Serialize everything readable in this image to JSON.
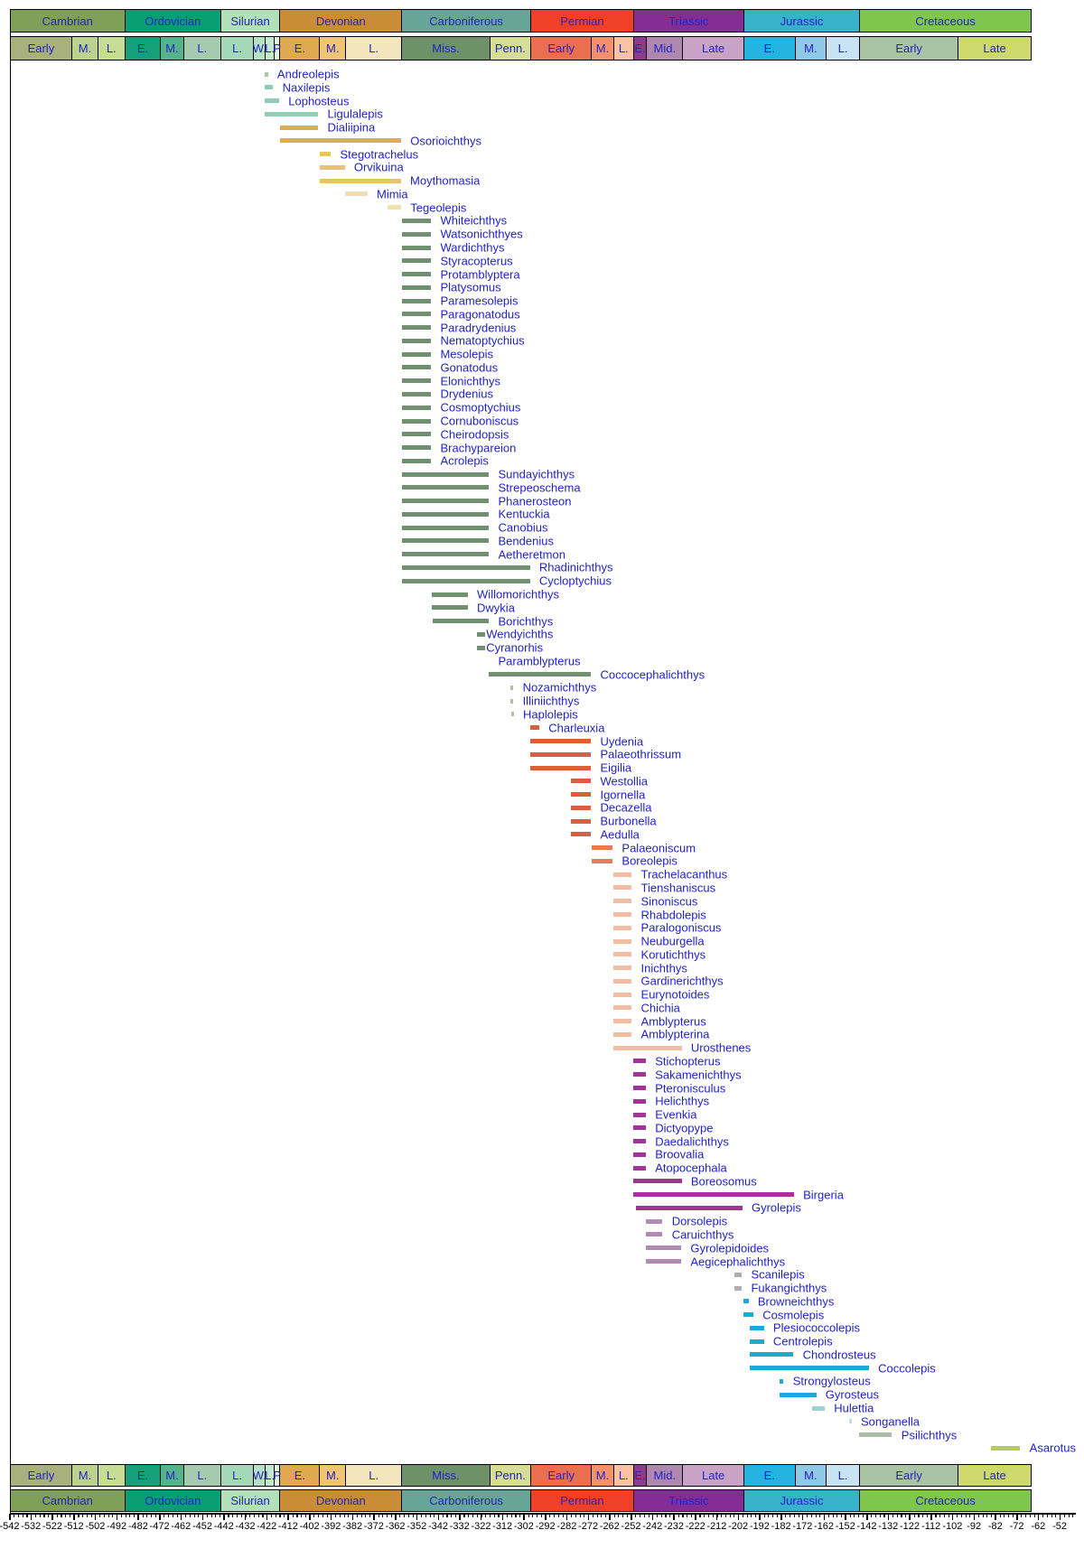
{
  "chart_data": {
    "type": "bar",
    "subtype": "stratigraphic-range-chart",
    "title": "",
    "xlabel": "",
    "ylabel": "",
    "x_axis": {
      "unit": "Ma",
      "min": -542,
      "max": -52,
      "major_tick_step": 10,
      "minor_tick_step": 2,
      "tick_labels": [
        "-542",
        "-532",
        "-522",
        "-512",
        "-502",
        "-492",
        "-482",
        "-472",
        "-462",
        "-452",
        "-442",
        "-432",
        "-422",
        "-412",
        "-402",
        "-392",
        "-382",
        "-372",
        "-362",
        "-352",
        "-342",
        "-332",
        "-322",
        "-312",
        "-302",
        "-292",
        "-282",
        "-272",
        "-262",
        "-252",
        "-242",
        "-232",
        "-222",
        "-212",
        "-202",
        "-192",
        "-182",
        "-172",
        "-162",
        "-152",
        "-142",
        "-132",
        "-122",
        "-112",
        "-102",
        "-92",
        "-82",
        "-72",
        "-62",
        "-52"
      ]
    },
    "periods": [
      {
        "name": "Cambrian",
        "start": 542,
        "end": 488.3,
        "color": "#7FA056"
      },
      {
        "name": "Ordovician",
        "start": 488.3,
        "end": 443.7,
        "color": "#089E74"
      },
      {
        "name": "Silurian",
        "start": 443.7,
        "end": 416,
        "color": "#B2E0B8"
      },
      {
        "name": "Devonian",
        "start": 416,
        "end": 359.2,
        "color": "#CB8C37"
      },
      {
        "name": "Carboniferous",
        "start": 359.2,
        "end": 299,
        "color": "#67A599"
      },
      {
        "name": "Permian",
        "start": 299,
        "end": 251,
        "color": "#F04028"
      },
      {
        "name": "Triassic",
        "start": 251,
        "end": 199.6,
        "color": "#842D94"
      },
      {
        "name": "Jurassic",
        "start": 199.6,
        "end": 145.5,
        "color": "#36B2C9"
      },
      {
        "name": "Cretaceous",
        "start": 145.5,
        "end": 65.5,
        "color": "#7FC64E"
      }
    ],
    "epochs": [
      {
        "label": "Early",
        "start": 542,
        "end": 513,
        "color": "#A8B17E"
      },
      {
        "label": "M.",
        "start": 513,
        "end": 501,
        "color": "#BBD28F"
      },
      {
        "label": "L.",
        "start": 501,
        "end": 488.3,
        "color": "#C6DD95"
      },
      {
        "label": "E.",
        "start": 488.3,
        "end": 471.8,
        "color": "#16A07A"
      },
      {
        "label": "M.",
        "start": 471.8,
        "end": 460.9,
        "color": "#55B28A"
      },
      {
        "label": "L.",
        "start": 460.9,
        "end": 443.7,
        "color": "#A4CBAD"
      },
      {
        "label": "L.",
        "start": 443.7,
        "end": 428.2,
        "color": "#A5D8B8"
      },
      {
        "label": "W.",
        "start": 428.2,
        "end": 422.9,
        "color": "#B5E1C5"
      },
      {
        "label": "L.",
        "start": 422.9,
        "end": 418.7,
        "color": "#C3E7D1"
      },
      {
        "label": "P",
        "start": 418.7,
        "end": 416,
        "color": "#E2F3E0"
      },
      {
        "label": "E.",
        "start": 416,
        "end": 397.5,
        "color": "#DFA952"
      },
      {
        "label": "M.",
        "start": 397.5,
        "end": 385.3,
        "color": "#EFC475"
      },
      {
        "label": "L.",
        "start": 385.3,
        "end": 359.2,
        "color": "#F3E6BC"
      },
      {
        "label": "Miss.",
        "start": 359.2,
        "end": 318.1,
        "color": "#6E9168"
      },
      {
        "label": "Penn.",
        "start": 318.1,
        "end": 299,
        "color": "#D6DD94"
      },
      {
        "label": "Early",
        "start": 299,
        "end": 270.6,
        "color": "#EA6E50"
      },
      {
        "label": "M.",
        "start": 270.6,
        "end": 260.4,
        "color": "#F4916D"
      },
      {
        "label": "L.",
        "start": 260.4,
        "end": 251,
        "color": "#FBC2A3"
      },
      {
        "label": "E.",
        "start": 251,
        "end": 245,
        "color": "#8C3C8E"
      },
      {
        "label": "Mid.",
        "start": 245,
        "end": 228,
        "color": "#B087AE"
      },
      {
        "label": "Late",
        "start": 228,
        "end": 199.6,
        "color": "#C9A2C8"
      },
      {
        "label": "E.",
        "start": 199.6,
        "end": 175.6,
        "color": "#25B3DF"
      },
      {
        "label": "M.",
        "start": 175.6,
        "end": 161.2,
        "color": "#8EC9E7"
      },
      {
        "label": "L.",
        "start": 161.2,
        "end": 145.5,
        "color": "#C8E4F4"
      },
      {
        "label": "Early",
        "start": 145.5,
        "end": 99.6,
        "color": "#A9C4A4"
      },
      {
        "label": "Late",
        "start": 99.6,
        "end": 65.5,
        "color": "#CDD96C"
      }
    ],
    "bar_colors": {
      "gorstian": "#ABC4AE",
      "ludlow": "#90CDB2",
      "edev": "#E0AC53",
      "mdev": "#E9C26C",
      "frasnian": "#F2DCB3",
      "famennian": "#F0E2A8",
      "miss": "#6F9170",
      "moscovian": "#B9BBA6",
      "eperm": "#DB5F3C",
      "mperm": "#E87A58",
      "lperm": "#F1BCA3",
      "etri": "#A13399",
      "mtri": "#B28AB4",
      "rhaetian": "#B2A9B4",
      "ejur": "#1BA9D8",
      "bathonian": "#A0CFD5",
      "tithonian": "#CBDBE3",
      "ecret": "#A9BDA8",
      "campanian": "#B6CA5F"
    },
    "taxa": [
      {
        "name": "Andreolepis",
        "start": 423.0,
        "end": 421.4,
        "color": "gorstian"
      },
      {
        "name": "Naxilepis",
        "start": 422.9,
        "end": 419.0,
        "color": "ludlow"
      },
      {
        "name": "Lophosteus",
        "start": 422.9,
        "end": 416.2,
        "color": "ludlow"
      },
      {
        "name": "Ligulalepis",
        "start": 422.9,
        "end": 398.0,
        "color": "ludlow"
      },
      {
        "name": "Dialiipina",
        "start": 415.9,
        "end": 398.0,
        "color": "edev"
      },
      {
        "name": "Osorioichthys",
        "start": 415.9,
        "end": 359.3,
        "color": "edev"
      },
      {
        "name": "Stegotrachelus",
        "start": 397.4,
        "end": 392.1,
        "color": "mdev"
      },
      {
        "name": "Orvikuina",
        "start": 397.4,
        "end": 385.6,
        "color": "mdev"
      },
      {
        "name": "Moythomasia",
        "start": 397.4,
        "end": 359.4,
        "color": "mdev"
      },
      {
        "name": "Mimia",
        "start": 385.3,
        "end": 375.0,
        "color": "frasnian"
      },
      {
        "name": "Tegeolepis",
        "start": 365.7,
        "end": 359.3,
        "color": "famennian"
      },
      {
        "name": "Whiteichthys",
        "start": 359.0,
        "end": 345.3,
        "color": "miss"
      },
      {
        "name": "Watsonichthyes",
        "start": 359.0,
        "end": 345.3,
        "color": "miss"
      },
      {
        "name": "Wardichthys",
        "start": 359.0,
        "end": 345.3,
        "color": "miss"
      },
      {
        "name": "Styracopterus",
        "start": 359.0,
        "end": 345.3,
        "color": "miss"
      },
      {
        "name": "Protamblyptera",
        "start": 359.0,
        "end": 345.3,
        "color": "miss"
      },
      {
        "name": "Platysomus",
        "start": 359.0,
        "end": 345.3,
        "color": "miss"
      },
      {
        "name": "Paramesolepis",
        "start": 359.0,
        "end": 345.3,
        "color": "miss"
      },
      {
        "name": "Paragonatodus",
        "start": 359.0,
        "end": 345.3,
        "color": "miss"
      },
      {
        "name": "Paradrydenius",
        "start": 359.0,
        "end": 345.3,
        "color": "miss"
      },
      {
        "name": "Nematoptychius",
        "start": 359.0,
        "end": 345.3,
        "color": "miss"
      },
      {
        "name": "Mesolepis",
        "start": 359.0,
        "end": 345.3,
        "color": "miss"
      },
      {
        "name": "Gonatodus",
        "start": 359.0,
        "end": 345.3,
        "color": "miss"
      },
      {
        "name": "Elonichthys",
        "start": 359.0,
        "end": 345.3,
        "color": "miss"
      },
      {
        "name": "Drydenius",
        "start": 359.0,
        "end": 345.3,
        "color": "miss"
      },
      {
        "name": "Cosmoptychius",
        "start": 359.0,
        "end": 345.3,
        "color": "miss"
      },
      {
        "name": "Cornuboniscus",
        "start": 359.0,
        "end": 345.3,
        "color": "miss"
      },
      {
        "name": "Cheirodopsis",
        "start": 359.0,
        "end": 345.3,
        "color": "miss"
      },
      {
        "name": "Brachypareion",
        "start": 359.0,
        "end": 345.3,
        "color": "miss"
      },
      {
        "name": "Acrolepis",
        "start": 359.0,
        "end": 345.3,
        "color": "miss"
      },
      {
        "name": "Sundayichthys",
        "start": 359.0,
        "end": 318.3,
        "color": "miss"
      },
      {
        "name": "Strepeoschema",
        "start": 359.0,
        "end": 318.3,
        "color": "miss"
      },
      {
        "name": "Phanerosteon",
        "start": 359.0,
        "end": 318.3,
        "color": "miss"
      },
      {
        "name": "Kentuckia",
        "start": 359.0,
        "end": 318.3,
        "color": "miss"
      },
      {
        "name": "Canobius",
        "start": 359.0,
        "end": 318.3,
        "color": "miss"
      },
      {
        "name": "Bendenius",
        "start": 359.0,
        "end": 318.3,
        "color": "miss"
      },
      {
        "name": "Aetheretmon",
        "start": 359.0,
        "end": 318.3,
        "color": "miss"
      },
      {
        "name": "Rhadinichthys",
        "start": 359.0,
        "end": 299.2,
        "color": "miss"
      },
      {
        "name": "Cycloptychius",
        "start": 359.0,
        "end": 299.2,
        "color": "miss"
      },
      {
        "name": "Willomorichthys",
        "start": 345.1,
        "end": 328.2,
        "color": "miss"
      },
      {
        "name": "Dwykia",
        "start": 345.1,
        "end": 328.2,
        "color": "miss"
      },
      {
        "name": "Borichthys",
        "start": 344.5,
        "end": 318.3,
        "color": "miss"
      },
      {
        "name": "Wendyichths",
        "start": 323.7,
        "end": 319.9,
        "color": "miss",
        "label_gap": 0.8
      },
      {
        "name": "Cyranorhis",
        "start": 323.7,
        "end": 319.9,
        "color": "miss",
        "label_gap": 0.8
      },
      {
        "name": "Paramblypterus",
        "start": 318.3,
        "end": 318.3,
        "color": "miss",
        "no_bar": true
      },
      {
        "name": "Coccocephalichthys",
        "start": 318.2,
        "end": 270.7,
        "color": "miss"
      },
      {
        "name": "Nozamichthys",
        "start": 308.1,
        "end": 306.9,
        "color": "moscovian"
      },
      {
        "name": "Illiniichthys",
        "start": 308.1,
        "end": 306.9,
        "color": "moscovian"
      },
      {
        "name": "Haplolepis",
        "start": 307.9,
        "end": 306.7,
        "color": "moscovian"
      },
      {
        "name": "Charleuxia",
        "start": 299.0,
        "end": 294.8,
        "color": "eperm"
      },
      {
        "name": "Uydenia",
        "start": 299.0,
        "end": 270.7,
        "color": "eperm"
      },
      {
        "name": "Palaeothrissum",
        "start": 299.0,
        "end": 270.7,
        "color": "eperm"
      },
      {
        "name": "Eigilia",
        "start": 299.0,
        "end": 270.7,
        "color": "eperm"
      },
      {
        "name": "Westollia",
        "start": 280.0,
        "end": 270.7,
        "color": "eperm"
      },
      {
        "name": "Igornella",
        "start": 280.0,
        "end": 270.7,
        "color": "eperm"
      },
      {
        "name": "Decazella",
        "start": 280.0,
        "end": 270.7,
        "color": "eperm"
      },
      {
        "name": "Burbonella",
        "start": 280.0,
        "end": 270.7,
        "color": "eperm"
      },
      {
        "name": "Aedulla",
        "start": 280.0,
        "end": 270.7,
        "color": "eperm"
      },
      {
        "name": "Palaeoniscum",
        "start": 270.5,
        "end": 260.6,
        "color": "mperm"
      },
      {
        "name": "Boreolepis",
        "start": 270.5,
        "end": 260.6,
        "color": "mperm"
      },
      {
        "name": "Trachelacanthus",
        "start": 260.1,
        "end": 251.7,
        "color": "lperm"
      },
      {
        "name": "Tienshaniscus",
        "start": 260.1,
        "end": 251.7,
        "color": "lperm"
      },
      {
        "name": "Sinoniscus",
        "start": 260.1,
        "end": 251.7,
        "color": "lperm"
      },
      {
        "name": "Rhabdolepis",
        "start": 260.1,
        "end": 251.7,
        "color": "lperm"
      },
      {
        "name": "Paralogoniscus",
        "start": 260.1,
        "end": 251.7,
        "color": "lperm"
      },
      {
        "name": "Neuburgella",
        "start": 260.1,
        "end": 251.7,
        "color": "lperm"
      },
      {
        "name": "Korutichthys",
        "start": 260.1,
        "end": 251.7,
        "color": "lperm"
      },
      {
        "name": "Inichthys",
        "start": 260.1,
        "end": 251.7,
        "color": "lperm"
      },
      {
        "name": "Gardinerichthys",
        "start": 260.1,
        "end": 251.7,
        "color": "lperm"
      },
      {
        "name": "Eurynotoides",
        "start": 260.1,
        "end": 251.7,
        "color": "lperm"
      },
      {
        "name": "Chichia",
        "start": 260.1,
        "end": 251.7,
        "color": "lperm"
      },
      {
        "name": "Amblypterus",
        "start": 260.1,
        "end": 251.7,
        "color": "lperm"
      },
      {
        "name": "Amblypterina",
        "start": 260.1,
        "end": 251.7,
        "color": "lperm"
      },
      {
        "name": "Urosthenes",
        "start": 260.1,
        "end": 228.4,
        "color": "lperm"
      },
      {
        "name": "Stichopterus",
        "start": 250.8,
        "end": 245.1,
        "color": "etri"
      },
      {
        "name": "Sakamenichthys",
        "start": 250.8,
        "end": 245.1,
        "color": "etri"
      },
      {
        "name": "Pteronisculus",
        "start": 250.8,
        "end": 245.1,
        "color": "etri"
      },
      {
        "name": "Helichthys",
        "start": 250.8,
        "end": 245.1,
        "color": "etri"
      },
      {
        "name": "Evenkia",
        "start": 250.8,
        "end": 245.1,
        "color": "etri"
      },
      {
        "name": "Dictyopype",
        "start": 250.8,
        "end": 245.1,
        "color": "etri"
      },
      {
        "name": "Daedalichthys",
        "start": 250.8,
        "end": 245.1,
        "color": "etri"
      },
      {
        "name": "Broovalia",
        "start": 250.8,
        "end": 245.1,
        "color": "etri"
      },
      {
        "name": "Atopocephala",
        "start": 250.8,
        "end": 245.1,
        "color": "etri"
      },
      {
        "name": "Boreosomus",
        "start": 250.8,
        "end": 228.4,
        "color": "etri"
      },
      {
        "name": "Birgeria",
        "start": 250.8,
        "end": 176.0,
        "color": "etri"
      },
      {
        "name": "Gyrolepis",
        "start": 249.7,
        "end": 200.1,
        "color": "etri"
      },
      {
        "name": "Dorsolepis",
        "start": 244.9,
        "end": 237.3,
        "color": "mtri"
      },
      {
        "name": "Caruichthys",
        "start": 244.9,
        "end": 237.3,
        "color": "mtri"
      },
      {
        "name": "Gyrolepidoides",
        "start": 244.9,
        "end": 228.6,
        "color": "mtri"
      },
      {
        "name": "Aegicephalichthys",
        "start": 244.9,
        "end": 228.6,
        "color": "mtri"
      },
      {
        "name": "Scanilepis",
        "start": 203.6,
        "end": 200.3,
        "color": "rhaetian"
      },
      {
        "name": "Fukangichthys",
        "start": 203.6,
        "end": 200.3,
        "color": "rhaetian"
      },
      {
        "name": "Browneichthys",
        "start": 199.6,
        "end": 197.2,
        "color": "ejur"
      },
      {
        "name": "Cosmolepis",
        "start": 199.6,
        "end": 194.9,
        "color": "ejur"
      },
      {
        "name": "Plesiococcolepis",
        "start": 196.5,
        "end": 190.0,
        "color": "ejur"
      },
      {
        "name": "Centrolepis",
        "start": 196.5,
        "end": 190.0,
        "color": "ejur"
      },
      {
        "name": "Chondrosteus",
        "start": 196.5,
        "end": 176.2,
        "color": "ejur"
      },
      {
        "name": "Coccolepis",
        "start": 196.5,
        "end": 141.0,
        "color": "ejur"
      },
      {
        "name": "Strongylosteus",
        "start": 182.6,
        "end": 180.8,
        "color": "ejur"
      },
      {
        "name": "Gyrosteus",
        "start": 182.6,
        "end": 165.6,
        "color": "ejur"
      },
      {
        "name": "Hulettia",
        "start": 167.5,
        "end": 161.6,
        "color": "bathonian"
      },
      {
        "name": "Songanella",
        "start": 150.4,
        "end": 149.1,
        "color": "tithonian"
      },
      {
        "name": "Psilichthys",
        "start": 145.4,
        "end": 130.2,
        "color": "ecret"
      },
      {
        "name": "Asarotus",
        "start": 84.1,
        "end": 70.4,
        "color": "campanian"
      }
    ],
    "legend_position": "none",
    "grid": false
  },
  "colors": {
    "label_text": "#2323C6",
    "scale_text": "#2323C6",
    "axis_text": "#000000",
    "axis_line": "#000000",
    "background": "#FFFFFF"
  }
}
